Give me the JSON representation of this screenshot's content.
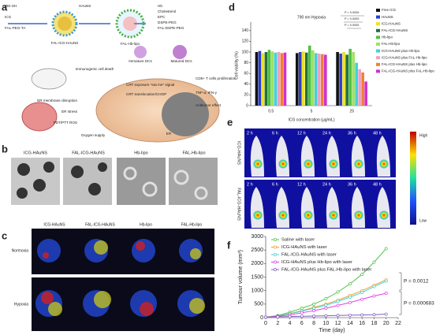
{
  "panel_labels": [
    "a",
    "b",
    "c",
    "d",
    "e",
    "f"
  ],
  "scheme": {
    "labels": [
      "PEI-SH",
      "HAuNS",
      "ICG",
      "FAL-PEG-TA",
      "Hb",
      "Cholesterol",
      "EPC",
      "DSPE-PEG",
      "FAL-DSPE-PEG",
      "FAL-ICG-HAuNS",
      "FAL-Hb-lipo",
      "Immunogenic cell death",
      "Immature DCs",
      "Matured DCs",
      "CRT exposure \"eat me\" signal",
      "CRT translocation/CHOP",
      "ER membrane disruption",
      "ER stress",
      "PDT/PTT ROS",
      "Oxygen supply",
      "ER",
      "CD8+ T cells proliferation",
      "TNF-α, IFN-γ",
      "Antitumor effect"
    ]
  },
  "tem": {
    "labels": [
      "ICG-HAuNS",
      "FAL-ICG-HAuNS",
      "Hb-lipo",
      "FAL-Hb-lipo"
    ]
  },
  "fluorescence": {
    "columns": [
      "ICG-HAuNS",
      "FAL-ICG-HAuNS",
      "Hb-lipo",
      "FAL-Hb-lipo"
    ],
    "rows": [
      "Normoxia",
      "Hypoxia"
    ]
  },
  "imaging": {
    "times": [
      "2 h",
      "6 h",
      "12 h",
      "24 h",
      "36 h",
      "48 h"
    ],
    "rows": [
      "ICG-HAuNS",
      "FAL-ICG-HAuNS"
    ],
    "scale": [
      "High",
      "Low"
    ]
  },
  "chart_data": [
    {
      "type": "bar",
      "title": "790 nm Hypoxia",
      "x_label": "ICG concentration (μg/mL)",
      "y_label": "Cell viability (%)",
      "categories": [
        "0.5",
        "5",
        "25"
      ],
      "ylim": [
        0,
        150
      ],
      "yticks": [
        0,
        20,
        40,
        60,
        80,
        100,
        120,
        140
      ],
      "annotations": [
        "P = 0.0026",
        "P = 0.0009",
        "P = 0.0005"
      ],
      "series": [
        {
          "name": "Free ICG",
          "color": "#111111",
          "values": [
            100,
            98,
            100
          ]
        },
        {
          "name": "HAuNS",
          "color": "#2a3fd0",
          "values": [
            102,
            100,
            97
          ]
        },
        {
          "name": "ICG-HAuNS",
          "color": "#f0e020",
          "values": [
            98,
            101,
            100
          ]
        },
        {
          "name": "FAL-ICG-HAuNS",
          "color": "#207040",
          "values": [
            100,
            99,
            95
          ]
        },
        {
          "name": "Hb-lipo",
          "color": "#50c040",
          "values": [
            104,
            112,
            106
          ]
        },
        {
          "name": "FAL-Hb-lipo",
          "color": "#a0e060",
          "values": [
            101,
            103,
            100
          ]
        },
        {
          "name": "ICG-HAuNS plus Hb-lipo",
          "color": "#40d0e0",
          "values": [
            99,
            98,
            80
          ]
        },
        {
          "name": "ICG-HAuNS plus FAL-Hb-lipo",
          "color": "#f0a0c0",
          "values": [
            100,
            97,
            68
          ]
        },
        {
          "name": "FAL-ICG-HAuNS plus Hb-lipo",
          "color": "#f08030",
          "values": [
            98,
            96,
            62
          ]
        },
        {
          "name": "FAL-ICG-HAuNS plus FAL-Hb-lipo",
          "color": "#d030d0",
          "values": [
            99,
            95,
            45
          ]
        }
      ]
    },
    {
      "type": "line",
      "x_label": "Time (day)",
      "y_label": "Tumour volume (mm³)",
      "x": [
        0,
        2,
        4,
        6,
        8,
        10,
        12,
        14,
        16,
        18,
        20
      ],
      "xlim": [
        0,
        22
      ],
      "xticks": [
        0,
        2,
        4,
        6,
        8,
        10,
        12,
        14,
        16,
        18,
        20,
        22
      ],
      "ylim": [
        0,
        3000
      ],
      "yticks": [
        0,
        500,
        1000,
        1500,
        2000,
        2500,
        3000
      ],
      "annotations": [
        "P = 0.0012",
        "P = 0.000683"
      ],
      "series": [
        {
          "name": "Saline with laser",
          "color": "#55c24a",
          "values": [
            20,
            80,
            200,
            350,
            500,
            700,
            950,
            1250,
            1600,
            2050,
            2550
          ]
        },
        {
          "name": "ICG-HAuNS with laser",
          "color": "#f0a030",
          "values": [
            20,
            60,
            150,
            260,
            380,
            500,
            650,
            820,
            1000,
            1200,
            1400
          ]
        },
        {
          "name": "FAL-ICG-HAuNS with laser",
          "color": "#40d0d0",
          "values": [
            20,
            60,
            140,
            240,
            350,
            460,
            600,
            760,
            930,
            1150,
            1350
          ]
        },
        {
          "name": "ICG-HAuNS plus Hb-lipo with laser",
          "color": "#e040e0",
          "values": [
            20,
            50,
            100,
            180,
            260,
            350,
            450,
            560,
            680,
            800,
            900
          ]
        },
        {
          "name": "FAL-ICG-HAuNS plus FAL-Hb-lipo with laser",
          "color": "#8060c0",
          "values": [
            20,
            30,
            40,
            50,
            60,
            70,
            80,
            90,
            100,
            110,
            130
          ]
        }
      ]
    }
  ]
}
